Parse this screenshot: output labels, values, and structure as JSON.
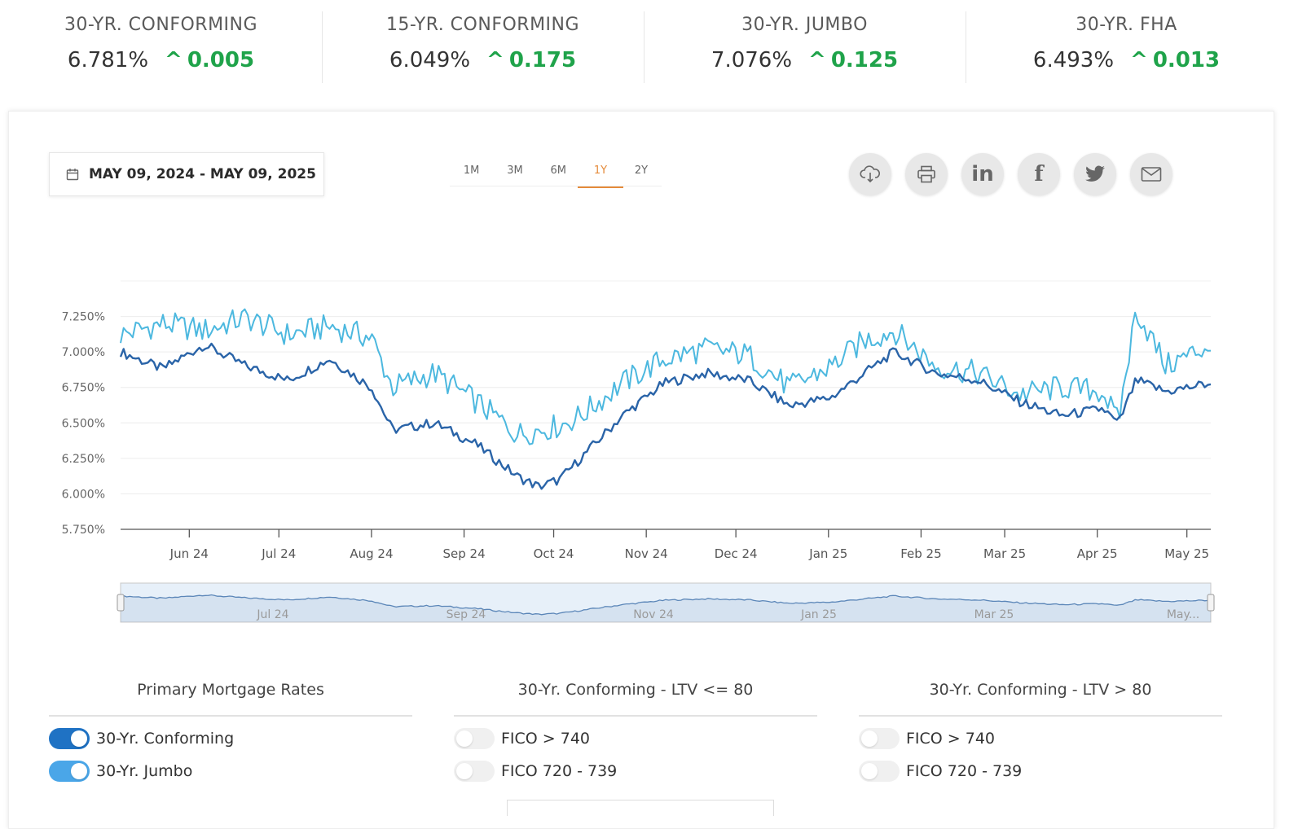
{
  "rates": [
    {
      "title": "30-YR. CONFORMING",
      "value": "6.781%",
      "change": "0.005"
    },
    {
      "title": "15-YR. CONFORMING",
      "value": "6.049%",
      "change": "0.175"
    },
    {
      "title": "30-YR. JUMBO",
      "value": "7.076%",
      "change": "0.125"
    },
    {
      "title": "30-YR. FHA",
      "value": "6.493%",
      "change": "0.013"
    }
  ],
  "date_range": "MAY 09, 2024 - MAY 09, 2025",
  "periods": [
    "1M",
    "3M",
    "6M",
    "1Y",
    "2Y"
  ],
  "active_period": "1Y",
  "share_icons": [
    "cloud-download-icon",
    "print-icon",
    "linkedin-icon",
    "facebook-icon",
    "twitter-icon",
    "email-icon"
  ],
  "colors": {
    "conforming": "#2a64a8",
    "jumbo": "#4cb8df",
    "up": "#1fa34a",
    "active_period": "#e58b3a"
  },
  "chart_data": {
    "type": "line",
    "ylim": [
      5.75,
      7.5
    ],
    "y_ticks": [
      "7.250%",
      "7.000%",
      "6.750%",
      "6.500%",
      "6.250%",
      "6.000%",
      "5.750%"
    ],
    "x_ticks": [
      "Jun 24",
      "Jul 24",
      "Aug 24",
      "Sep 24",
      "Oct 24",
      "Nov 24",
      "Dec 24",
      "Jan 25",
      "Feb 25",
      "Mar 25",
      "Apr 25",
      "May 25"
    ],
    "navigator_ticks": [
      "Jul 24",
      "Sep 24",
      "Nov 24",
      "Jan 25",
      "Mar 25",
      "May..."
    ],
    "x": [
      "2024-05-09",
      "2024-05-23",
      "2024-06-06",
      "2024-06-20",
      "2024-07-04",
      "2024-07-18",
      "2024-08-01",
      "2024-08-08",
      "2024-08-22",
      "2024-09-05",
      "2024-09-19",
      "2024-09-26",
      "2024-10-03",
      "2024-10-10",
      "2024-10-24",
      "2024-11-07",
      "2024-11-21",
      "2024-12-05",
      "2024-12-19",
      "2025-01-02",
      "2025-01-13",
      "2025-01-23",
      "2025-02-06",
      "2025-02-20",
      "2025-03-06",
      "2025-03-20",
      "2025-04-03",
      "2025-04-08",
      "2025-04-14",
      "2025-04-24",
      "2025-05-09"
    ],
    "series": [
      {
        "name": "30-Yr. Conforming",
        "values": [
          7.0,
          6.88,
          7.05,
          6.9,
          6.8,
          6.95,
          6.75,
          6.45,
          6.5,
          6.35,
          6.12,
          6.05,
          6.1,
          6.25,
          6.55,
          6.78,
          6.85,
          6.8,
          6.62,
          6.68,
          6.85,
          7.0,
          6.85,
          6.8,
          6.65,
          6.55,
          6.6,
          6.49,
          6.8,
          6.72,
          6.78
        ]
      },
      {
        "name": "30-Yr. Jumbo",
        "values": [
          7.12,
          7.2,
          7.15,
          7.24,
          7.12,
          7.18,
          7.1,
          6.75,
          6.85,
          6.65,
          6.42,
          6.45,
          6.48,
          6.55,
          6.78,
          6.95,
          7.02,
          6.98,
          6.75,
          6.9,
          7.08,
          7.15,
          6.9,
          6.85,
          6.7,
          6.75,
          6.72,
          6.5,
          7.3,
          6.9,
          7.05
        ]
      }
    ]
  },
  "groups": [
    {
      "title": "Primary Mortgage Rates",
      "items": [
        {
          "label": "30-Yr. Conforming",
          "on": true
        },
        {
          "label": "30-Yr. Jumbo",
          "on": true
        }
      ]
    },
    {
      "title": "30-Yr. Conforming - LTV <= 80",
      "items": [
        {
          "label": "FICO > 740",
          "on": false
        },
        {
          "label": "FICO 720 - 739",
          "on": false
        }
      ]
    },
    {
      "title": "30-Yr. Conforming - LTV > 80",
      "items": [
        {
          "label": "FICO > 740",
          "on": false
        },
        {
          "label": "FICO 720 - 739",
          "on": false
        }
      ]
    }
  ]
}
